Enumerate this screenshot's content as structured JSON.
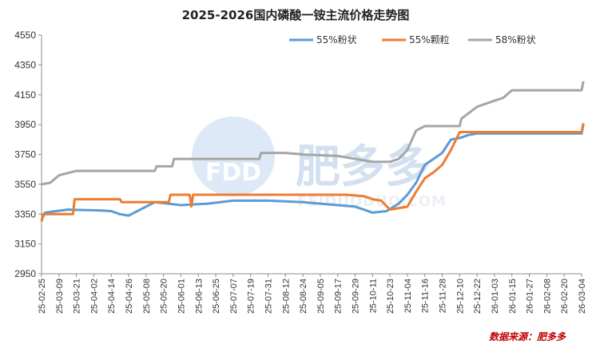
{
  "chart_data": {
    "type": "line",
    "title": "2025-2026国内磷酸一铵主流价格走势图",
    "xlabel": "",
    "ylabel": "",
    "ylim": [
      2950,
      4550
    ],
    "yticks": [
      2950,
      3150,
      3350,
      3550,
      3750,
      3950,
      4150,
      4350,
      4550
    ],
    "grid": false,
    "legend_position": "top-right",
    "categories": [
      "25-02-25",
      "25-03-09",
      "25-03-21",
      "25-04-02",
      "25-04-14",
      "25-04-26",
      "25-05-08",
      "25-05-20",
      "25-06-01",
      "25-06-13",
      "25-06-25",
      "25-07-07",
      "25-07-19",
      "25-07-31",
      "25-08-12",
      "25-08-24",
      "25-09-05",
      "25-09-17",
      "25-09-29",
      "25-10-11",
      "25-10-23",
      "25-11-04",
      "25-11-16",
      "25-11-28",
      "25-12-10",
      "25-12-22",
      "26-01-03",
      "26-01-15",
      "26-01-27",
      "26-02-08",
      "26-02-20",
      "26-03-04"
    ],
    "series": [
      {
        "name": "55%粉状",
        "color": "#5b9bd5",
        "points": [
          [
            0,
            3310
          ],
          [
            0.2,
            3360
          ],
          [
            1.5,
            3380
          ],
          [
            3.3,
            3375
          ],
          [
            4.0,
            3370
          ],
          [
            4.5,
            3350
          ],
          [
            5.0,
            3340
          ],
          [
            5.5,
            3370
          ],
          [
            6.0,
            3400
          ],
          [
            6.5,
            3430
          ],
          [
            8.0,
            3410
          ],
          [
            9.5,
            3420
          ],
          [
            11.0,
            3440
          ],
          [
            13.0,
            3440
          ],
          [
            15.0,
            3430
          ],
          [
            17.0,
            3410
          ],
          [
            18.0,
            3400
          ],
          [
            18.5,
            3380
          ],
          [
            19.0,
            3360
          ],
          [
            19.8,
            3370
          ],
          [
            20.5,
            3420
          ],
          [
            21.0,
            3480
          ],
          [
            21.5,
            3560
          ],
          [
            22.0,
            3680
          ],
          [
            22.5,
            3720
          ],
          [
            23.0,
            3760
          ],
          [
            23.5,
            3850
          ],
          [
            24.0,
            3860
          ],
          [
            24.5,
            3880
          ],
          [
            25.0,
            3890
          ],
          [
            30.0,
            3890
          ],
          [
            31.0,
            3890
          ],
          [
            31.1,
            3950
          ]
        ]
      },
      {
        "name": "55%颗粒",
        "color": "#ed7d31",
        "points": [
          [
            0,
            3300
          ],
          [
            0.1,
            3350
          ],
          [
            1.8,
            3350
          ],
          [
            1.9,
            3450
          ],
          [
            4.5,
            3450
          ],
          [
            4.6,
            3430
          ],
          [
            7.3,
            3430
          ],
          [
            7.4,
            3480
          ],
          [
            8.5,
            3480
          ],
          [
            8.6,
            3400
          ],
          [
            8.7,
            3480
          ],
          [
            17.5,
            3480
          ],
          [
            18.5,
            3470
          ],
          [
            19.0,
            3450
          ],
          [
            19.5,
            3440
          ],
          [
            20.0,
            3380
          ],
          [
            21.0,
            3400
          ],
          [
            21.5,
            3500
          ],
          [
            22.0,
            3590
          ],
          [
            22.5,
            3630
          ],
          [
            23.0,
            3680
          ],
          [
            23.5,
            3780
          ],
          [
            24.0,
            3900
          ],
          [
            31.0,
            3900
          ],
          [
            31.1,
            3960
          ]
        ]
      },
      {
        "name": "58%粉状",
        "color": "#a5a5a5",
        "points": [
          [
            0,
            3550
          ],
          [
            0.5,
            3560
          ],
          [
            1.0,
            3610
          ],
          [
            2.0,
            3640
          ],
          [
            6.5,
            3640
          ],
          [
            6.6,
            3670
          ],
          [
            7.5,
            3670
          ],
          [
            7.6,
            3720
          ],
          [
            12.5,
            3720
          ],
          [
            12.6,
            3760
          ],
          [
            14.0,
            3760
          ],
          [
            15.0,
            3750
          ],
          [
            17.0,
            3740
          ],
          [
            19.0,
            3700
          ],
          [
            20.0,
            3700
          ],
          [
            20.5,
            3720
          ],
          [
            21.0,
            3780
          ],
          [
            21.5,
            3910
          ],
          [
            22.0,
            3940
          ],
          [
            24.0,
            3940
          ],
          [
            24.1,
            3990
          ],
          [
            25.0,
            4070
          ],
          [
            26.0,
            4110
          ],
          [
            26.5,
            4130
          ],
          [
            27.0,
            4180
          ],
          [
            31.0,
            4180
          ],
          [
            31.1,
            4240
          ]
        ]
      }
    ]
  },
  "watermark": {
    "logo_text": "FDD",
    "brand_text": "肥多多",
    "url_text": "FEIDUODUO.COM"
  },
  "source_text": "数据来源：肥多多"
}
